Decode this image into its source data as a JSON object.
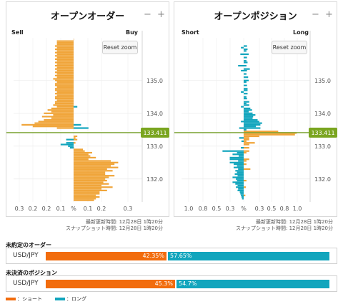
{
  "colors": {
    "short": "#f26c0d",
    "long": "#12a5bd",
    "order_bar": "#f0a53a",
    "price_line": "#6f9a1f",
    "price_tag": "#7aa520"
  },
  "panels": {
    "orders": {
      "title": "オープンオーダー",
      "minus_icon": "minus-icon",
      "plus_icon": "plus-icon",
      "minus": "−",
      "plus": "+",
      "left_label": "Sell",
      "right_label": "Buy",
      "reset": "Reset zoom",
      "updated": "最新更新時間: 12月28日 1時20分",
      "snapshot": "スナップショット時間: 12月28日 1時20分"
    },
    "positions": {
      "title": "オープンポジション",
      "minus": "−",
      "plus": "+",
      "left_label": "Short",
      "right_label": "Long",
      "reset": "Reset zoom",
      "updated": "最新更新時間: 12月28日 1時20分",
      "snapshot": "スナップショット時間: 12月28日 1時20分"
    }
  },
  "chart_data": [
    {
      "type": "bar",
      "title": "オープンオーダー",
      "price_axis": {
        "ticks": [
          "135.0",
          "134.0",
          "133.0",
          "132.0"
        ],
        "tick_values": [
          135.0,
          134.0,
          133.0,
          132.0
        ],
        "current_price": "133.411",
        "current_value": 133.411,
        "range": [
          131.3,
          136.3
        ]
      },
      "x_axis": {
        "tick_labels": [
          "0.3",
          "0.2",
          "0.2",
          "0.1",
          "%",
          "0.1",
          "0.2",
          "0.3"
        ],
        "left_max": 0.3,
        "right_max": 0.3
      },
      "bars_sell": [
        {
          "p": 136.25,
          "v": 0.0
        },
        {
          "p": 136.2,
          "v": 0.09
        },
        {
          "p": 136.15,
          "v": 0.09
        },
        {
          "p": 136.1,
          "v": 0.09
        },
        {
          "p": 136.05,
          "v": 0.1
        },
        {
          "p": 136.0,
          "v": 0.09
        },
        {
          "p": 135.95,
          "v": 0.1
        },
        {
          "p": 135.9,
          "v": 0.09
        },
        {
          "p": 135.85,
          "v": 0.1
        },
        {
          "p": 135.8,
          "v": 0.09
        },
        {
          "p": 135.75,
          "v": 0.1
        },
        {
          "p": 135.7,
          "v": 0.09
        },
        {
          "p": 135.65,
          "v": 0.1
        },
        {
          "p": 135.6,
          "v": 0.09
        },
        {
          "p": 135.55,
          "v": 0.1
        },
        {
          "p": 135.5,
          "v": 0.09
        },
        {
          "p": 135.45,
          "v": 0.1
        },
        {
          "p": 135.4,
          "v": 0.09
        },
        {
          "p": 135.35,
          "v": 0.1
        },
        {
          "p": 135.3,
          "v": 0.09
        },
        {
          "p": 135.25,
          "v": 0.1
        },
        {
          "p": 135.2,
          "v": 0.09
        },
        {
          "p": 135.15,
          "v": 0.1
        },
        {
          "p": 135.1,
          "v": 0.09
        },
        {
          "p": 135.05,
          "v": 0.11
        },
        {
          "p": 135.0,
          "v": 0.1
        },
        {
          "p": 134.95,
          "v": 0.09
        },
        {
          "p": 134.9,
          "v": 0.1
        },
        {
          "p": 134.85,
          "v": 0.1
        },
        {
          "p": 134.8,
          "v": 0.09
        },
        {
          "p": 134.75,
          "v": 0.1
        },
        {
          "p": 134.7,
          "v": 0.1
        },
        {
          "p": 134.65,
          "v": 0.09
        },
        {
          "p": 134.6,
          "v": 0.1
        },
        {
          "p": 134.55,
          "v": 0.09
        },
        {
          "p": 134.5,
          "v": 0.1
        },
        {
          "p": 134.45,
          "v": 0.1
        },
        {
          "p": 134.4,
          "v": 0.09
        },
        {
          "p": 134.35,
          "v": 0.1
        },
        {
          "p": 134.3,
          "v": 0.1
        },
        {
          "p": 134.25,
          "v": 0.11
        },
        {
          "p": 134.2,
          "v": 0.09
        },
        {
          "p": 134.15,
          "v": 0.12
        },
        {
          "p": 134.1,
          "v": 0.14
        },
        {
          "p": 134.05,
          "v": 0.12
        },
        {
          "p": 134.0,
          "v": 0.16
        },
        {
          "p": 133.95,
          "v": 0.11
        },
        {
          "p": 133.9,
          "v": 0.17
        },
        {
          "p": 133.85,
          "v": 0.12
        },
        {
          "p": 133.8,
          "v": 0.16
        },
        {
          "p": 133.75,
          "v": 0.19
        },
        {
          "p": 133.7,
          "v": 0.21
        },
        {
          "p": 133.65,
          "v": 0.28
        },
        {
          "p": 133.6,
          "v": 0.22
        },
        {
          "p": 133.55,
          "v": 0.09
        }
      ],
      "bars_buy": [
        {
          "p": 133.3,
          "v": 0.02
        },
        {
          "p": 133.25,
          "v": 0.01
        },
        {
          "p": 133.2,
          "v": 0.02
        },
        {
          "p": 133.1,
          "v": 0.01
        },
        {
          "p": 132.95,
          "v": 0.0
        },
        {
          "p": 132.9,
          "v": 0.05
        },
        {
          "p": 132.85,
          "v": 0.06
        },
        {
          "p": 132.8,
          "v": 0.1
        },
        {
          "p": 132.75,
          "v": 0.08
        },
        {
          "p": 132.7,
          "v": 0.09
        },
        {
          "p": 132.65,
          "v": 0.12
        },
        {
          "p": 132.6,
          "v": 0.08
        },
        {
          "p": 132.55,
          "v": 0.2
        },
        {
          "p": 132.5,
          "v": 0.24
        },
        {
          "p": 132.45,
          "v": 0.22
        },
        {
          "p": 132.4,
          "v": 0.2
        },
        {
          "p": 132.35,
          "v": 0.24
        },
        {
          "p": 132.3,
          "v": 0.18
        },
        {
          "p": 132.25,
          "v": 0.21
        },
        {
          "p": 132.2,
          "v": 0.17
        },
        {
          "p": 132.15,
          "v": 0.17
        },
        {
          "p": 132.1,
          "v": 0.22
        },
        {
          "p": 132.05,
          "v": 0.19
        },
        {
          "p": 132.0,
          "v": 0.17
        },
        {
          "p": 131.95,
          "v": 0.18
        },
        {
          "p": 131.9,
          "v": 0.16
        },
        {
          "p": 131.85,
          "v": 0.19
        },
        {
          "p": 131.8,
          "v": 0.15
        },
        {
          "p": 131.75,
          "v": 0.21
        },
        {
          "p": 131.7,
          "v": 0.15
        },
        {
          "p": 131.65,
          "v": 0.18
        },
        {
          "p": 131.6,
          "v": 0.14
        },
        {
          "p": 131.55,
          "v": 0.14
        },
        {
          "p": 131.5,
          "v": 0.12
        },
        {
          "p": 131.45,
          "v": 0.14
        },
        {
          "p": 131.4,
          "v": 0.12
        },
        {
          "p": 131.35,
          "v": 0.11
        }
      ],
      "bars_sell_low": [
        {
          "p": 133.2,
          "v": 0.04
        },
        {
          "p": 133.1,
          "v": 0.04
        },
        {
          "p": 133.05,
          "v": 0.07
        },
        {
          "p": 133.0,
          "v": 0.03
        },
        {
          "p": 132.95,
          "v": 0.02
        }
      ],
      "bars_buy_high": [
        {
          "p": 134.2,
          "v": 0.02
        },
        {
          "p": 133.65,
          "v": 0.04
        },
        {
          "p": 133.55,
          "v": 0.08
        }
      ]
    },
    {
      "type": "bar",
      "title": "オープンポジション",
      "price_axis": {
        "ticks": [
          "135.0",
          "134.0",
          "133.0",
          "132.0"
        ],
        "tick_values": [
          135.0,
          134.0,
          133.0,
          132.0
        ],
        "current_price": "133.411",
        "current_value": 133.411,
        "range": [
          131.3,
          136.3
        ]
      },
      "x_axis": {
        "tick_labels": [
          "1.0",
          "0.8",
          "0.5",
          "0.3",
          "%",
          "0.3",
          "0.5",
          "0.8",
          "1.0"
        ],
        "left_max": 1.0,
        "right_max": 1.0
      },
      "bars_short": [
        {
          "p": 136.0,
          "v": 0.05
        },
        {
          "p": 135.8,
          "v": 0.06
        },
        {
          "p": 135.45,
          "v": 0.1
        },
        {
          "p": 135.3,
          "v": 0.05
        },
        {
          "p": 134.65,
          "v": 0.05
        },
        {
          "p": 134.2,
          "v": 0.05
        },
        {
          "p": 133.75,
          "v": 0.05
        },
        {
          "p": 133.55,
          "v": 0.08
        },
        {
          "p": 133.25,
          "v": 0.08
        },
        {
          "p": 133.15,
          "v": 0.04
        },
        {
          "p": 132.95,
          "v": 0.05
        },
        {
          "p": 132.85,
          "v": 0.38
        },
        {
          "p": 132.8,
          "v": 0.12
        },
        {
          "p": 132.75,
          "v": 0.2
        },
        {
          "p": 132.7,
          "v": 0.09
        },
        {
          "p": 132.65,
          "v": 0.25
        },
        {
          "p": 132.6,
          "v": 0.25
        },
        {
          "p": 132.55,
          "v": 0.1
        },
        {
          "p": 132.5,
          "v": 0.25
        },
        {
          "p": 132.45,
          "v": 0.18
        },
        {
          "p": 132.4,
          "v": 0.12
        },
        {
          "p": 132.35,
          "v": 0.18
        },
        {
          "p": 132.3,
          "v": 0.1
        },
        {
          "p": 132.25,
          "v": 0.15
        },
        {
          "p": 132.2,
          "v": 0.12
        },
        {
          "p": 132.15,
          "v": 0.16
        },
        {
          "p": 132.1,
          "v": 0.11
        },
        {
          "p": 132.05,
          "v": 0.2
        },
        {
          "p": 132.0,
          "v": 0.14
        },
        {
          "p": 131.95,
          "v": 0.12
        },
        {
          "p": 131.9,
          "v": 0.2
        },
        {
          "p": 131.85,
          "v": 0.15
        },
        {
          "p": 131.8,
          "v": 0.11
        },
        {
          "p": 131.75,
          "v": 0.14
        },
        {
          "p": 131.7,
          "v": 0.1
        },
        {
          "p": 131.65,
          "v": 0.11
        },
        {
          "p": 131.6,
          "v": 0.07
        },
        {
          "p": 131.55,
          "v": 0.06
        },
        {
          "p": 131.5,
          "v": 0.05
        },
        {
          "p": 131.45,
          "v": 0.04
        },
        {
          "p": 131.4,
          "v": 0.03
        }
      ],
      "bars_long": [
        {
          "p": 136.05,
          "v": 0.06
        },
        {
          "p": 135.95,
          "v": 0.07
        },
        {
          "p": 135.9,
          "v": 0.05
        },
        {
          "p": 135.8,
          "v": 0.09
        },
        {
          "p": 135.7,
          "v": 0.06
        },
        {
          "p": 135.6,
          "v": 0.05
        },
        {
          "p": 135.55,
          "v": 0.07
        },
        {
          "p": 135.45,
          "v": 0.05
        },
        {
          "p": 135.35,
          "v": 0.11
        },
        {
          "p": 135.3,
          "v": 0.06
        },
        {
          "p": 135.2,
          "v": 0.05
        },
        {
          "p": 135.1,
          "v": 0.08
        },
        {
          "p": 135.0,
          "v": 0.09
        },
        {
          "p": 134.95,
          "v": 0.05
        },
        {
          "p": 134.85,
          "v": 0.06
        },
        {
          "p": 134.75,
          "v": 0.07
        },
        {
          "p": 134.7,
          "v": 0.07
        },
        {
          "p": 134.6,
          "v": 0.07
        },
        {
          "p": 134.5,
          "v": 0.05
        },
        {
          "p": 134.45,
          "v": 0.06
        },
        {
          "p": 134.35,
          "v": 0.1
        },
        {
          "p": 134.3,
          "v": 0.05
        },
        {
          "p": 134.25,
          "v": 0.1
        },
        {
          "p": 134.15,
          "v": 0.12
        },
        {
          "p": 134.1,
          "v": 0.15
        },
        {
          "p": 134.05,
          "v": 0.09
        },
        {
          "p": 134.0,
          "v": 0.16
        },
        {
          "p": 133.95,
          "v": 0.21
        },
        {
          "p": 133.9,
          "v": 0.17
        },
        {
          "p": 133.85,
          "v": 0.16
        },
        {
          "p": 133.8,
          "v": 0.25
        },
        {
          "p": 133.75,
          "v": 0.28
        },
        {
          "p": 133.7,
          "v": 0.33
        },
        {
          "p": 133.65,
          "v": 0.3
        },
        {
          "p": 133.6,
          "v": 0.22
        },
        {
          "p": 133.55,
          "v": 0.3
        },
        {
          "p": 133.5,
          "v": 0.05
        }
      ],
      "bars_long_low": [
        {
          "p": 133.45,
          "v": 0.62
        },
        {
          "p": 133.4,
          "v": 0.95
        },
        {
          "p": 133.35,
          "v": 0.92
        },
        {
          "p": 133.3,
          "v": 0.28
        },
        {
          "p": 133.25,
          "v": 0.1
        },
        {
          "p": 133.2,
          "v": 0.1
        },
        {
          "p": 133.15,
          "v": 0.05
        },
        {
          "p": 133.1,
          "v": 0.2
        },
        {
          "p": 133.05,
          "v": 0.1
        },
        {
          "p": 132.95,
          "v": 0.1
        },
        {
          "p": 132.85,
          "v": 0.1
        },
        {
          "p": 132.8,
          "v": 0.05
        },
        {
          "p": 132.6,
          "v": 0.1
        },
        {
          "p": 132.55,
          "v": 0.05
        },
        {
          "p": 132.45,
          "v": 0.05
        },
        {
          "p": 132.3,
          "v": 0.12
        },
        {
          "p": 131.95,
          "v": 0.05
        },
        {
          "p": 131.75,
          "v": 0.04
        },
        {
          "p": 131.5,
          "v": 0.03
        }
      ]
    }
  ],
  "ratios": {
    "orders": {
      "label": "未約定のオーダー",
      "pair": "USD/JPY",
      "short_pct": 42.35,
      "short_label": "42.35%",
      "long_label": "57.65%"
    },
    "positions": {
      "label": "未決済のポジション",
      "pair": "USD/JPY",
      "short_pct": 45.3,
      "short_label": "45.3%",
      "long_label": "54.7%"
    }
  },
  "legend": {
    "short": "：ショート",
    "long": "：ロング"
  }
}
